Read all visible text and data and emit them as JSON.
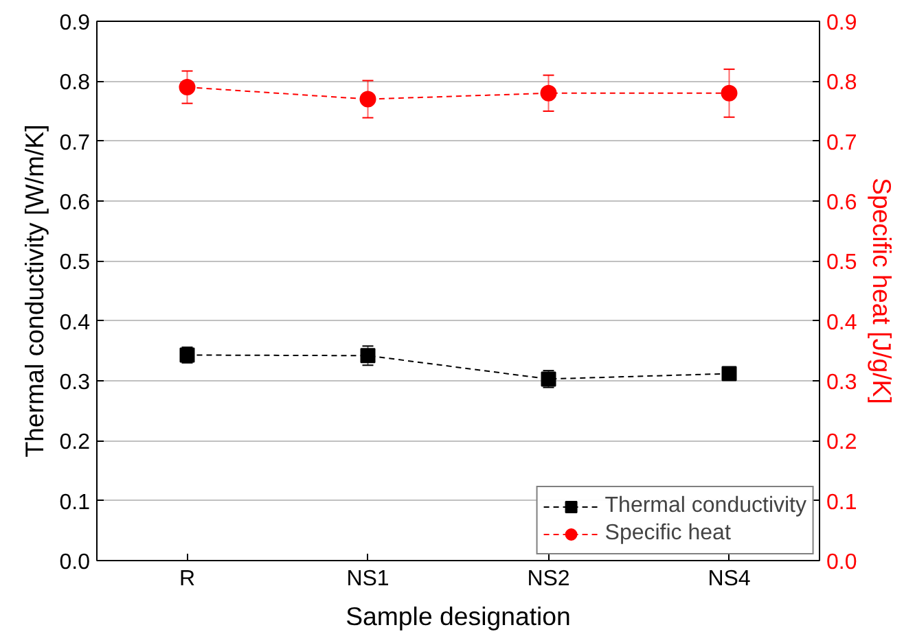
{
  "chart_data": {
    "type": "line",
    "xlabel": "Sample designation",
    "ylabel": "Thermal conductivity [W/m/K]",
    "y2label": "Specific heat [J/g/K]",
    "categories": [
      "R",
      "NS1",
      "NS2",
      "NS4"
    ],
    "series": [
      {
        "name": "Thermal conductivity",
        "color": "#000000",
        "values": [
          0.343,
          0.342,
          0.303,
          0.312
        ],
        "errors": [
          0.013,
          0.016,
          0.014,
          0.006
        ],
        "marker": "square",
        "line_style": "dashed"
      },
      {
        "name": "Specific heat",
        "color": "#ff0000",
        "values": [
          0.79,
          0.77,
          0.78,
          0.78
        ],
        "errors": [
          0.027,
          0.031,
          0.03,
          0.04
        ],
        "marker": "circle",
        "line_style": "dashed",
        "axis": "y2"
      }
    ],
    "ylim": [
      0,
      0.9
    ],
    "yticks": [
      {
        "value": 0,
        "label": "0.0"
      },
      0.1,
      0.2,
      0.3,
      0.4,
      0.5,
      0.6,
      0.7,
      0.8,
      0.9
    ],
    "y2lim": [
      0,
      0.9
    ],
    "y2ticks": [
      {
        "value": 0,
        "label": "0.0"
      },
      0.1,
      0.2,
      0.3,
      0.4,
      0.5,
      0.6,
      0.7,
      0.8,
      0.9
    ],
    "grid": "y",
    "legend": "bottom right"
  }
}
